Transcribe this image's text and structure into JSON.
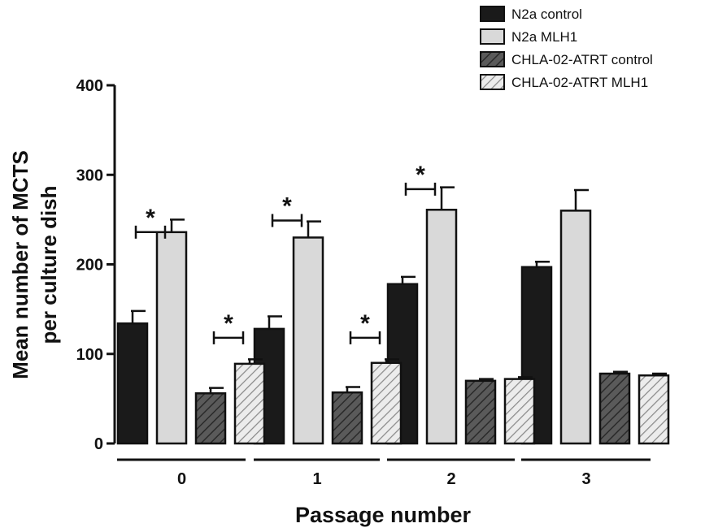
{
  "chart_data": {
    "type": "bar",
    "title": "",
    "xlabel": "Passage number",
    "ylabel_lines": [
      "Mean number of MCTS",
      "per culture dish"
    ],
    "categories": [
      "0",
      "1",
      "2",
      "3"
    ],
    "ylim": [
      0,
      400
    ],
    "yticks": [
      0,
      100,
      200,
      300,
      400
    ],
    "grid": false,
    "legend_position": "top-right",
    "series": [
      {
        "name": "N2a control",
        "values": [
          134,
          128,
          178,
          197
        ],
        "errors": [
          14,
          14,
          8,
          6
        ],
        "fill": "#1a1a1a",
        "pattern": "solid"
      },
      {
        "name": "N2a MLH1",
        "values": [
          236,
          230,
          261,
          260
        ],
        "errors": [
          14,
          18,
          25,
          23
        ],
        "fill": "#d9d9d9",
        "pattern": "solid"
      },
      {
        "name": "CHLA-02-ATRT control",
        "values": [
          56,
          57,
          70,
          78
        ],
        "errors": [
          6,
          6,
          2,
          2
        ],
        "fill": "#5a5a5a",
        "pattern": "hatch"
      },
      {
        "name": "CHLA-02-ATRT MLH1",
        "values": [
          89,
          90,
          72,
          76
        ],
        "errors": [
          5,
          4,
          2,
          2
        ],
        "fill": "#e0e0e0",
        "pattern": "hatch"
      }
    ],
    "annotations": [
      {
        "text": "*",
        "group": 0,
        "pair": "N2a",
        "y": 262
      },
      {
        "text": "*",
        "group": 0,
        "pair": "CHLA",
        "y": 144
      },
      {
        "text": "*",
        "group": 1,
        "pair": "N2a",
        "y": 275
      },
      {
        "text": "*",
        "group": 1,
        "pair": "CHLA",
        "y": 144
      },
      {
        "text": "*",
        "group": 2,
        "pair": "N2a",
        "y": 310
      }
    ]
  }
}
